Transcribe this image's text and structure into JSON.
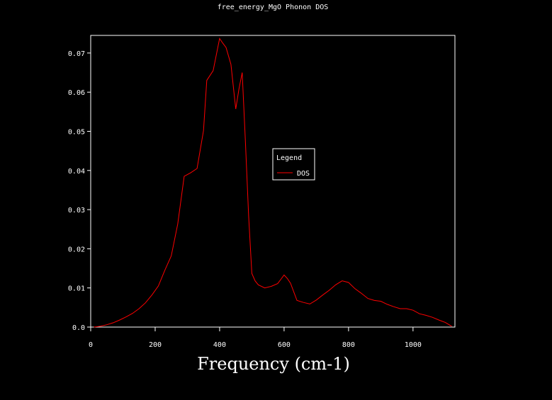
{
  "chart_data": {
    "type": "line",
    "title": "free_energy_MgO Phonon DOS",
    "xlabel": "Frequency (cm-1)",
    "ylabel": "",
    "xlim": [
      0,
      1130
    ],
    "ylim": [
      0,
      0.0745
    ],
    "x_ticks": [
      0,
      200,
      400,
      600,
      800,
      1000
    ],
    "x_tick_labels": [
      "0",
      "200",
      "400",
      "600",
      "800",
      "1000"
    ],
    "y_ticks": [
      0.0,
      0.01,
      0.02,
      0.03,
      0.04,
      0.05,
      0.06,
      0.07
    ],
    "y_tick_labels": [
      "0.0",
      "0.01",
      "0.02",
      "0.03",
      "0.04",
      "0.05",
      "0.06",
      "0.07"
    ],
    "grid": false,
    "legend": {
      "title": "Legend",
      "position": "center"
    },
    "colors": {
      "background": "#000000",
      "axes": "#ffffff",
      "series": "#ff0000"
    },
    "series": [
      {
        "name": "DOS",
        "x": [
          10,
          30,
          50,
          70,
          90,
          110,
          130,
          150,
          170,
          190,
          210,
          230,
          250,
          270,
          290,
          310,
          330,
          350,
          360,
          380,
          400,
          410,
          420,
          435,
          450,
          460,
          470,
          480,
          490,
          500,
          510,
          520,
          540,
          560,
          580,
          590,
          600,
          610,
          620,
          640,
          660,
          680,
          700,
          720,
          740,
          760,
          780,
          800,
          820,
          840,
          860,
          880,
          900,
          920,
          940,
          960,
          980,
          1000,
          1020,
          1040,
          1060,
          1080,
          1100,
          1120
        ],
        "y": [
          0.0,
          0.0002,
          0.0006,
          0.0011,
          0.0018,
          0.0026,
          0.0035,
          0.0047,
          0.0062,
          0.0082,
          0.0105,
          0.0145,
          0.0182,
          0.0263,
          0.0385,
          0.0394,
          0.0405,
          0.0502,
          0.063,
          0.0655,
          0.0737,
          0.0725,
          0.0714,
          0.0671,
          0.0557,
          0.0608,
          0.065,
          0.0475,
          0.0283,
          0.0137,
          0.0118,
          0.0108,
          0.01,
          0.0104,
          0.0111,
          0.0122,
          0.0133,
          0.0124,
          0.0112,
          0.0068,
          0.0063,
          0.0059,
          0.0069,
          0.0082,
          0.0094,
          0.0108,
          0.0118,
          0.0114,
          0.0098,
          0.0086,
          0.0073,
          0.0068,
          0.0066,
          0.0058,
          0.0052,
          0.0047,
          0.0047,
          0.0043,
          0.0034,
          0.003,
          0.0025,
          0.0018,
          0.0012,
          0.0002
        ]
      }
    ]
  }
}
